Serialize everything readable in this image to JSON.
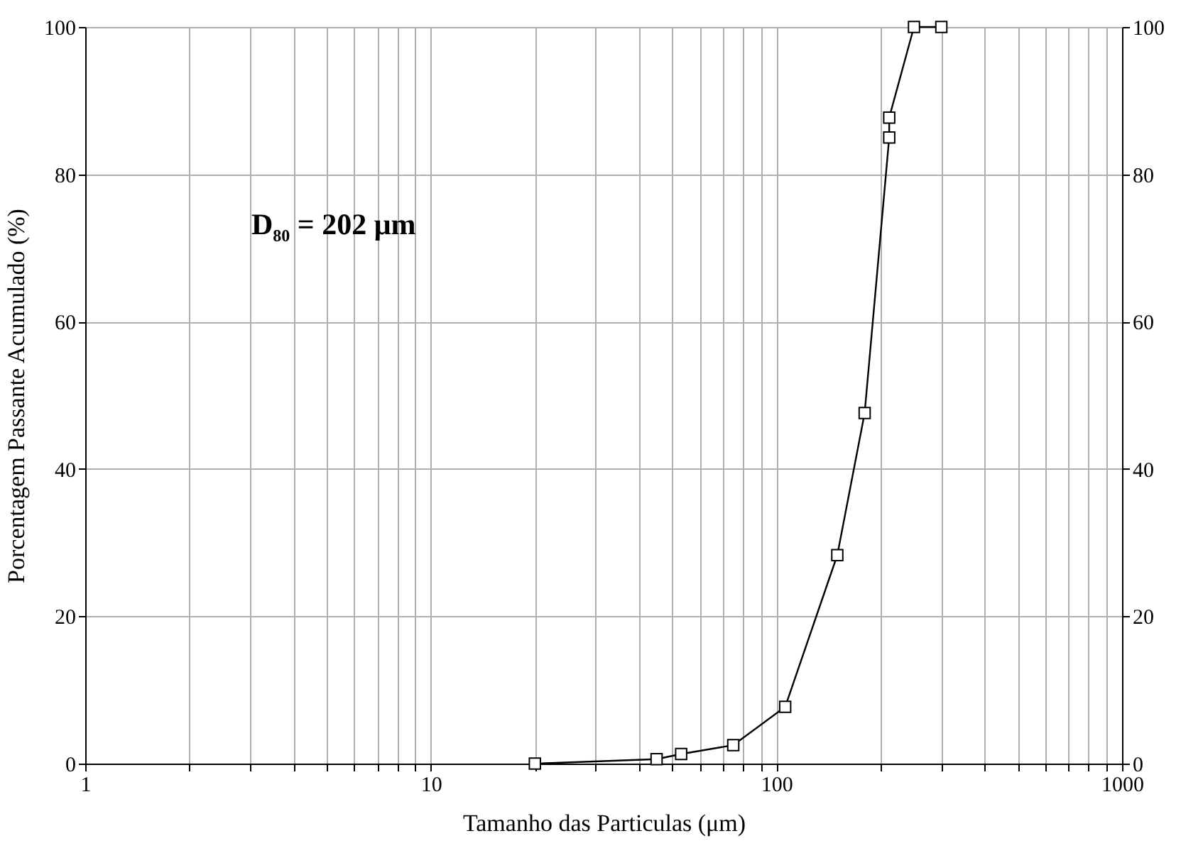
{
  "chart_data": {
    "type": "line",
    "xlabel": "Tamanho das Particulas (μm)",
    "ylabel": "Porcentagem Passante Acumulado (%)",
    "annotations": [
      "D$_{80}$ = 202 μm"
    ],
    "log": "x",
    "grid": true,
    "marker": "square",
    "line_style": "solid",
    "xlim": [
      1,
      1000
    ],
    "xticks": [
      1,
      {
        "value": 2,
        "label": null
      },
      {
        "value": 3,
        "label": null
      },
      {
        "value": 4,
        "label": null
      },
      {
        "value": 5,
        "label": null
      },
      {
        "value": 6,
        "label": null
      },
      {
        "value": 7,
        "label": null
      },
      {
        "value": 8,
        "label": null
      },
      {
        "value": 9,
        "label": null
      },
      10,
      {
        "value": 20,
        "label": null
      },
      {
        "value": 30,
        "label": null
      },
      {
        "value": 40,
        "label": null
      },
      {
        "value": 50,
        "label": null
      },
      {
        "value": 60,
        "label": null
      },
      {
        "value": 70,
        "label": null
      },
      {
        "value": 80,
        "label": null
      },
      {
        "value": 90,
        "label": null
      },
      100,
      {
        "value": 200,
        "label": null
      },
      {
        "value": 300,
        "label": null
      },
      {
        "value": 400,
        "label": null
      },
      {
        "value": 500,
        "label": null
      },
      {
        "value": 600,
        "label": null
      },
      {
        "value": 700,
        "label": null
      },
      {
        "value": 800,
        "label": null
      },
      {
        "value": 900,
        "label": null
      },
      1000
    ],
    "ylim": [
      0,
      100
    ],
    "yticks": [
      0,
      20,
      40,
      60,
      80,
      100
    ],
    "y2lim": [
      0,
      100
    ],
    "y2ticks": [
      0,
      20,
      40,
      60,
      80,
      100
    ],
    "series": [
      {
        "color": "#000000",
        "x": [
          20,
          45,
          53,
          75,
          106,
          150,
          180,
          212,
          212,
          250,
          300
        ],
        "values": [
          0,
          0.6,
          1.3,
          2.5,
          7.7,
          28.3,
          47.6,
          85,
          87.7,
          100,
          100
        ]
      }
    ]
  }
}
